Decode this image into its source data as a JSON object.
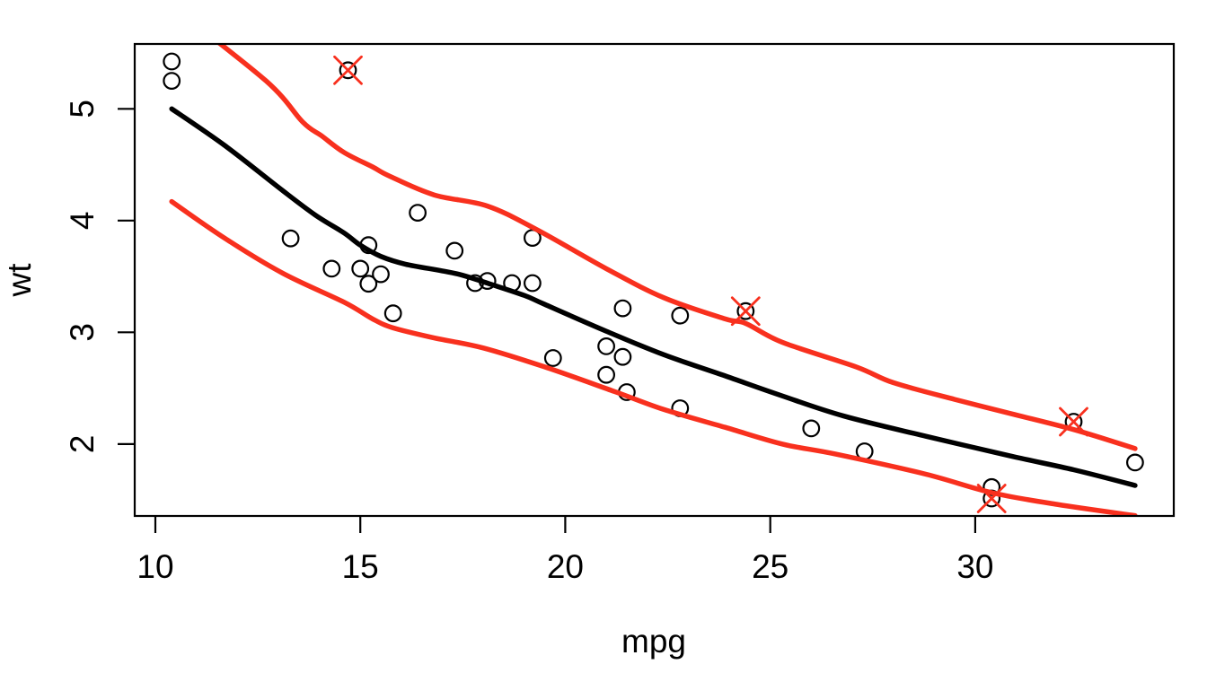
{
  "figure": {
    "background": "#ffffff",
    "foreground": "#000000"
  },
  "chart_data": {
    "type": "scatter",
    "title": "",
    "xlabel": "mpg",
    "ylabel": "wt",
    "xlim": [
      9.4965,
      34.8435
    ],
    "ylim": [
      1.3566,
      5.5804
    ],
    "x_ticks": [
      10,
      15,
      20,
      25,
      30
    ],
    "y_ticks": [
      2,
      3,
      4,
      5
    ],
    "grid": false,
    "legend": "none",
    "colors": {
      "points": "#000000",
      "fit_line": "#000000",
      "band_lines": "#f8301e",
      "outlier_marks": "#f8301e"
    },
    "series": [
      {
        "name": "observations",
        "type": "scatter",
        "marker": "open-circle",
        "points": [
          [
            21.0,
            2.62
          ],
          [
            21.0,
            2.875
          ],
          [
            22.8,
            2.32
          ],
          [
            21.4,
            3.215
          ],
          [
            18.7,
            3.44
          ],
          [
            18.1,
            3.46
          ],
          [
            14.3,
            3.57
          ],
          [
            24.4,
            3.19
          ],
          [
            22.8,
            3.15
          ],
          [
            19.2,
            3.44
          ],
          [
            17.8,
            3.44
          ],
          [
            16.4,
            4.07
          ],
          [
            17.3,
            3.73
          ],
          [
            15.2,
            3.78
          ],
          [
            10.4,
            5.25
          ],
          [
            10.4,
            5.424
          ],
          [
            14.7,
            5.345
          ],
          [
            32.4,
            2.2
          ],
          [
            30.4,
            1.615
          ],
          [
            33.9,
            1.835
          ],
          [
            21.5,
            2.465
          ],
          [
            15.5,
            3.52
          ],
          [
            15.2,
            3.435
          ],
          [
            13.3,
            3.84
          ],
          [
            19.2,
            3.845
          ],
          [
            27.3,
            1.935
          ],
          [
            26.0,
            2.14
          ],
          [
            30.4,
            1.513
          ],
          [
            15.8,
            3.17
          ],
          [
            19.7,
            2.77
          ],
          [
            15.0,
            3.57
          ],
          [
            21.4,
            2.78
          ]
        ]
      },
      {
        "name": "flagged-outliers",
        "type": "scatter",
        "marker": "x-cross",
        "points": [
          [
            14.7,
            5.345
          ],
          [
            24.4,
            3.19
          ],
          [
            32.4,
            2.2
          ],
          [
            30.4,
            1.513
          ]
        ]
      },
      {
        "name": "loess-fit",
        "type": "line",
        "points": [
          [
            10.4,
            5.0
          ],
          [
            11.7,
            4.67
          ],
          [
            13.1,
            4.27
          ],
          [
            13.9,
            4.05
          ],
          [
            14.6,
            3.89
          ],
          [
            15.0,
            3.78
          ],
          [
            15.5,
            3.68
          ],
          [
            16.1,
            3.61
          ],
          [
            17.0,
            3.55
          ],
          [
            17.5,
            3.51
          ],
          [
            18.1,
            3.44
          ],
          [
            19.0,
            3.33
          ],
          [
            19.5,
            3.25
          ],
          [
            21.0,
            3.01
          ],
          [
            22.4,
            2.8
          ],
          [
            23.9,
            2.61
          ],
          [
            25.3,
            2.43
          ],
          [
            26.8,
            2.25
          ],
          [
            28.8,
            2.07
          ],
          [
            30.9,
            1.89
          ],
          [
            32.4,
            1.77
          ],
          [
            33.9,
            1.63
          ]
        ]
      },
      {
        "name": "upper-band",
        "type": "line",
        "points": [
          [
            10.4,
            5.92
          ],
          [
            12.7,
            5.25
          ],
          [
            13.6,
            4.88
          ],
          [
            14.05,
            4.76
          ],
          [
            14.6,
            4.61
          ],
          [
            15.3,
            4.48
          ],
          [
            15.7,
            4.4
          ],
          [
            16.8,
            4.23
          ],
          [
            18.1,
            4.13
          ],
          [
            19.3,
            3.92
          ],
          [
            21.0,
            3.57
          ],
          [
            22.4,
            3.31
          ],
          [
            23.9,
            3.12
          ],
          [
            24.4,
            3.08
          ],
          [
            25.3,
            2.91
          ],
          [
            27.1,
            2.69
          ],
          [
            28.0,
            2.55
          ],
          [
            29.5,
            2.4
          ],
          [
            30.9,
            2.27
          ],
          [
            32.4,
            2.13
          ],
          [
            33.9,
            1.96
          ]
        ]
      },
      {
        "name": "lower-band",
        "type": "line",
        "points": [
          [
            10.4,
            4.17
          ],
          [
            11.7,
            3.84
          ],
          [
            13.1,
            3.53
          ],
          [
            14.6,
            3.27
          ],
          [
            15.3,
            3.12
          ],
          [
            15.8,
            3.04
          ],
          [
            16.8,
            2.95
          ],
          [
            18.0,
            2.86
          ],
          [
            19.5,
            2.69
          ],
          [
            21.2,
            2.47
          ],
          [
            22.4,
            2.31
          ],
          [
            23.9,
            2.15
          ],
          [
            25.3,
            2.0
          ],
          [
            26.6,
            1.91
          ],
          [
            28.8,
            1.73
          ],
          [
            30.4,
            1.565
          ],
          [
            32.0,
            1.46
          ],
          [
            33.9,
            1.36
          ]
        ]
      }
    ]
  }
}
